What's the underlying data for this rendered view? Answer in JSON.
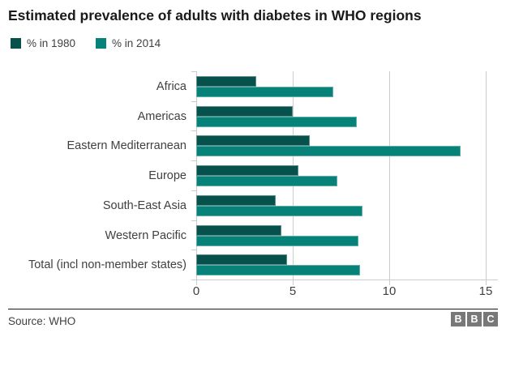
{
  "title": "Estimated prevalence of adults with diabetes in WHO regions",
  "legend": [
    {
      "label": "% in 1980",
      "color": "#06514c"
    },
    {
      "label": "% in 2014",
      "color": "#068279"
    }
  ],
  "chart_data": {
    "type": "bar",
    "orientation": "horizontal",
    "title": "Estimated prevalence of adults with diabetes in WHO regions",
    "categories": [
      "Africa",
      "Americas",
      "Eastern Mediterranean",
      "Europe",
      "South-East Asia",
      "Western Pacific",
      "Total (incl non-member states)"
    ],
    "series": [
      {
        "name": "% in 1980",
        "color": "#06514c",
        "values": [
          3.1,
          5.0,
          5.9,
          5.3,
          4.1,
          4.4,
          4.7
        ]
      },
      {
        "name": "% in 2014",
        "color": "#068279",
        "values": [
          7.1,
          8.3,
          13.7,
          7.3,
          8.6,
          8.4,
          8.5
        ]
      }
    ],
    "xlabel": "",
    "ylabel": "",
    "xlim": [
      0,
      15
    ],
    "xticks": [
      0,
      5,
      10,
      15
    ],
    "grid": true,
    "legend_position": "top-left"
  },
  "footer": {
    "source": "Source: WHO",
    "logo_letters": [
      "B",
      "B",
      "C"
    ]
  },
  "colors": {
    "grid": "#cccccc",
    "axis_text": "#404040",
    "title_text": "#1a1a1a",
    "divider": "#1a1a1a",
    "logo_bg": "#787878"
  }
}
